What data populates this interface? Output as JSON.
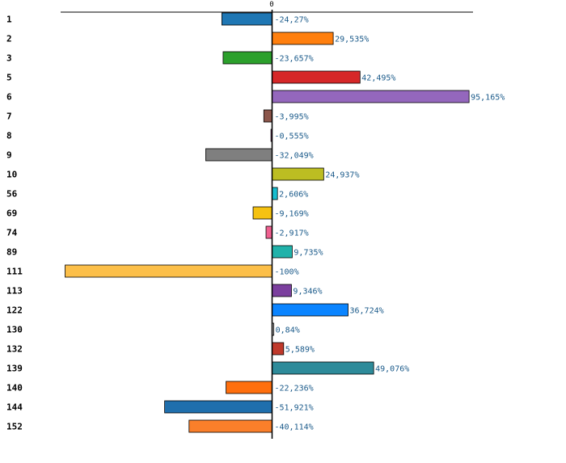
{
  "chart_data": {
    "type": "bar",
    "orientation": "horizontal",
    "title": "",
    "xlabel": "",
    "ylabel": "",
    "zero_tick_label": "0",
    "xlim": [
      -100,
      95.165
    ],
    "categories": [
      "1",
      "2",
      "3",
      "5",
      "6",
      "7",
      "8",
      "9",
      "10",
      "56",
      "69",
      "74",
      "89",
      "111",
      "113",
      "122",
      "130",
      "132",
      "139",
      "140",
      "144",
      "152"
    ],
    "values": [
      -24.27,
      29.535,
      -23.657,
      42.495,
      95.165,
      -3.995,
      -0.555,
      -32.049,
      24.937,
      2.606,
      -9.169,
      -2.917,
      9.735,
      -100,
      9.346,
      36.724,
      0.84,
      5.589,
      49.076,
      -22.236,
      -51.921,
      -40.114
    ],
    "value_labels": [
      "-24,27%",
      "29,535%",
      "-23,657%",
      "42,495%",
      "95,165%",
      "-3,995%",
      "-0,555%",
      "-32,049%",
      "24,937%",
      "2,606%",
      "-9,169%",
      "-2,917%",
      "9,735%",
      "-100%",
      "9,346%",
      "36,724%",
      "0,84%",
      "5,589%",
      "49,076%",
      "-22,236%",
      "-51,921%",
      "-40,114%"
    ],
    "colors": [
      "#1f77b4",
      "#ff7f0e",
      "#2ca02c",
      "#d62728",
      "#9467bd",
      "#8c564b",
      "#e377c2",
      "#7f7f7f",
      "#bcbd22",
      "#17becf",
      "#f5c211",
      "#f06090",
      "#20b2aa",
      "#fcbf49",
      "#7b3f9e",
      "#0a84ff",
      "#cccccc",
      "#c0392b",
      "#2e8b9a",
      "#ff6f0e",
      "#1f6fad",
      "#fa7f2a"
    ],
    "grid": false,
    "legend": "none"
  }
}
